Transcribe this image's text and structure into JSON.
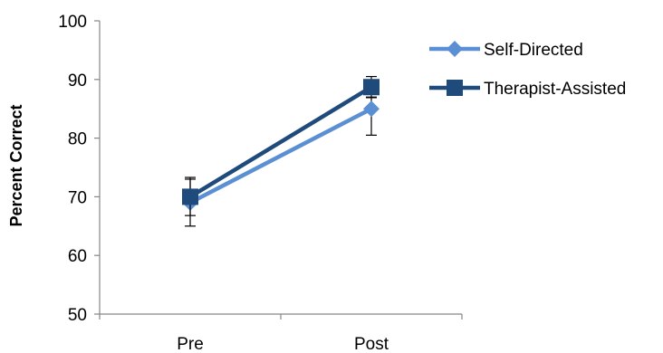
{
  "chart_data": {
    "type": "line",
    "title": "",
    "xlabel": "",
    "ylabel": "Percent Correct",
    "categories": [
      "Pre",
      "Post"
    ],
    "ylim": [
      50,
      100
    ],
    "yticks": [
      50,
      60,
      70,
      80,
      90,
      100
    ],
    "grid": false,
    "legend_position": "right",
    "series": [
      {
        "name": "Self-Directed",
        "values": [
          69,
          85
        ],
        "error": [
          [
            4,
            4
          ],
          [
            4.5,
            2
          ]
        ],
        "marker": "diamond",
        "color": "#5b8fd4"
      },
      {
        "name": "Therapist-Assisted",
        "values": [
          70,
          88.7
        ],
        "error": [
          [
            3.2,
            3.3
          ],
          [
            1.8,
            1.8
          ]
        ],
        "marker": "square",
        "color": "#1f4a7c"
      }
    ]
  }
}
